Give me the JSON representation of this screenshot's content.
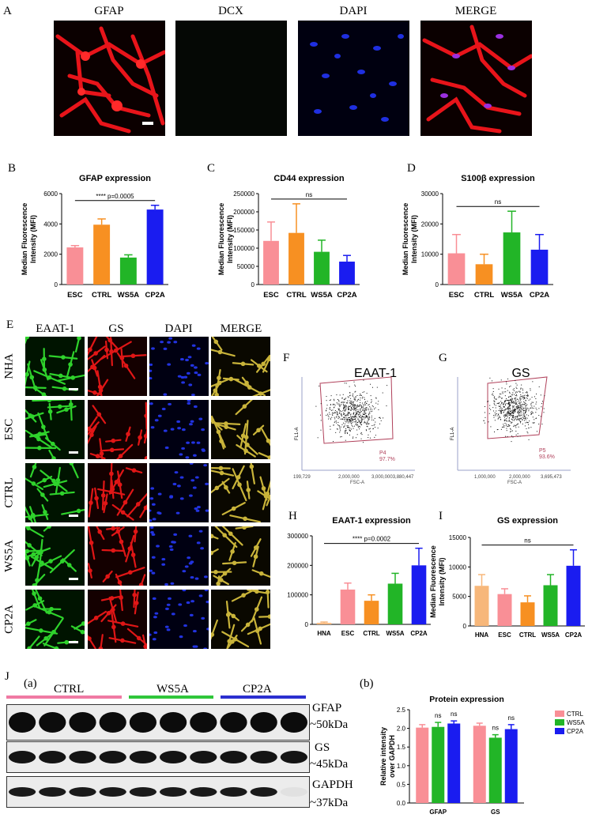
{
  "panel_letters": [
    "A",
    "B",
    "C",
    "D",
    "E",
    "F",
    "G",
    "H",
    "I",
    "J"
  ],
  "panelA": {
    "channels": [
      "GFAP",
      "DCX",
      "DAPI",
      "MERGE"
    ],
    "colors": {
      "gfap": "#e8141a",
      "dapi": "#1f2fe0",
      "dcx": "#050805"
    }
  },
  "chart_data": [
    {
      "id": "B",
      "type": "bar",
      "title": "GFAP expression",
      "categories": [
        "ESC",
        "CTRL",
        "WS5A",
        "CP2A"
      ],
      "values": [
        2450,
        3950,
        1780,
        4950
      ],
      "errors": [
        120,
        380,
        180,
        280
      ],
      "colors": [
        "#f98f96",
        "#f79022",
        "#22b527",
        "#1a1cf0"
      ],
      "ylabel": "Median Fluorescence Intensity (MFI)",
      "ylim": [
        0,
        6000
      ],
      "yticks": [
        0,
        2000,
        4000,
        6000
      ],
      "annotation": "**** p=0.0005"
    },
    {
      "id": "C",
      "type": "bar",
      "title": "CD44 expression",
      "categories": [
        "ESC",
        "CTRL",
        "WS5A",
        "CP2A"
      ],
      "values": [
        120000,
        142000,
        90000,
        63000
      ],
      "errors": [
        52000,
        80000,
        32000,
        17000
      ],
      "colors": [
        "#f98f96",
        "#f79022",
        "#22b527",
        "#1a1cf0"
      ],
      "ylabel": "Median Fluorescence Intensity (MFI)",
      "ylim": [
        0,
        250000
      ],
      "yticks": [
        0,
        50000,
        100000,
        150000,
        200000,
        250000
      ],
      "annotation": "ns"
    },
    {
      "id": "D",
      "type": "bar",
      "title": "S100β expression",
      "categories": [
        "ESC",
        "CTRL",
        "WS5A",
        "CP2A"
      ],
      "values": [
        10300,
        6700,
        17200,
        11500
      ],
      "errors": [
        6200,
        3300,
        7000,
        5000
      ],
      "colors": [
        "#f98f96",
        "#f79022",
        "#22b527",
        "#1a1cf0"
      ],
      "ylabel": "Median Fluorescence Intensity (MFI)",
      "ylim": [
        0,
        30000
      ],
      "yticks": [
        0,
        10000,
        20000,
        30000
      ],
      "annotation": "ns"
    },
    {
      "id": "H",
      "type": "bar",
      "title": "EAAT-1 expression",
      "categories": [
        "HNA",
        "ESC",
        "CTRL",
        "WS5A",
        "CP2A"
      ],
      "values": [
        5000,
        118000,
        80000,
        138000,
        200000
      ],
      "errors": [
        3000,
        22000,
        20000,
        35000,
        58000
      ],
      "colors": [
        "#f7b77a",
        "#f98f96",
        "#f79022",
        "#22b527",
        "#1a1cf0"
      ],
      "ylabel": "",
      "ylim": [
        0,
        300000
      ],
      "yticks": [
        0,
        100000,
        200000,
        300000
      ],
      "annotation": "**** p=0.0002"
    },
    {
      "id": "I",
      "type": "bar",
      "title": "GS expression",
      "categories": [
        "HNA",
        "ESC",
        "CTRL",
        "WS5A",
        "CP2A"
      ],
      "values": [
        6800,
        5400,
        4000,
        6900,
        10200
      ],
      "errors": [
        1900,
        900,
        1100,
        1800,
        2700
      ],
      "colors": [
        "#f7b77a",
        "#f98f96",
        "#f79022",
        "#22b527",
        "#1a1cf0"
      ],
      "ylabel": "Median Fluorescence Intensity (MFI)",
      "ylim": [
        0,
        15000
      ],
      "yticks": [
        0,
        5000,
        10000,
        15000
      ],
      "annotation": "ns"
    },
    {
      "id": "Jb",
      "type": "bar",
      "title": "Protein expression",
      "categories": [
        "GFAP",
        "GS"
      ],
      "series": [
        {
          "name": "CTRL",
          "values": [
            2.02,
            2.07
          ],
          "errors": [
            0.08,
            0.07
          ],
          "color": "#f98f96"
        },
        {
          "name": "WS5A",
          "values": [
            2.04,
            1.75
          ],
          "errors": [
            0.12,
            0.08
          ],
          "color": "#22b527"
        },
        {
          "name": "CP2A",
          "values": [
            2.13,
            1.98
          ],
          "errors": [
            0.07,
            0.12
          ],
          "color": "#1a1cf0"
        }
      ],
      "annotations": [
        "",
        "ns",
        "ns",
        "",
        "ns",
        "ns"
      ],
      "ylabel": "Relative intensity over GAPDH",
      "ylim": [
        0,
        2.5
      ],
      "yticks": [
        0,
        0.5,
        1.0,
        1.5,
        2.0,
        2.5
      ],
      "legend": "top-right"
    }
  ],
  "panelE": {
    "columns": [
      "EAAT-1",
      "GS",
      "DAPI",
      "MERGE"
    ],
    "rows": [
      "NHA",
      "ESC",
      "CTRL",
      "WS5A",
      "CP2A"
    ]
  },
  "flow": [
    {
      "id": "F",
      "title": "EAAT-1",
      "gate": "P4",
      "percent": "97.7%",
      "ylabel": "FL1-A",
      "xlabel": "FSC-A",
      "xticks": [
        "199,729",
        "2,000,000",
        "3,000,0003,880,447"
      ]
    },
    {
      "id": "G",
      "title": "GS",
      "gate": "P5",
      "percent": "93.6%",
      "ylabel": "FL1-A",
      "xlabel": "FSC-A",
      "xticks": [
        "1,000,000",
        "2,000,000",
        "3,695,473"
      ]
    }
  ],
  "panelJ": {
    "sublabel_a": "(a)",
    "sublabel_b": "(b)",
    "groups": [
      {
        "name": "CTRL",
        "color": "#f07aa3"
      },
      {
        "name": "WS5A",
        "color": "#2fc63a"
      },
      {
        "name": "CP2A",
        "color": "#2b2fd0"
      }
    ],
    "bands": [
      {
        "protein": "GFAP",
        "size": "~50kDa"
      },
      {
        "protein": "GS",
        "size": "~45kDa"
      },
      {
        "protein": "GAPDH",
        "size": "~37kDa"
      }
    ]
  }
}
